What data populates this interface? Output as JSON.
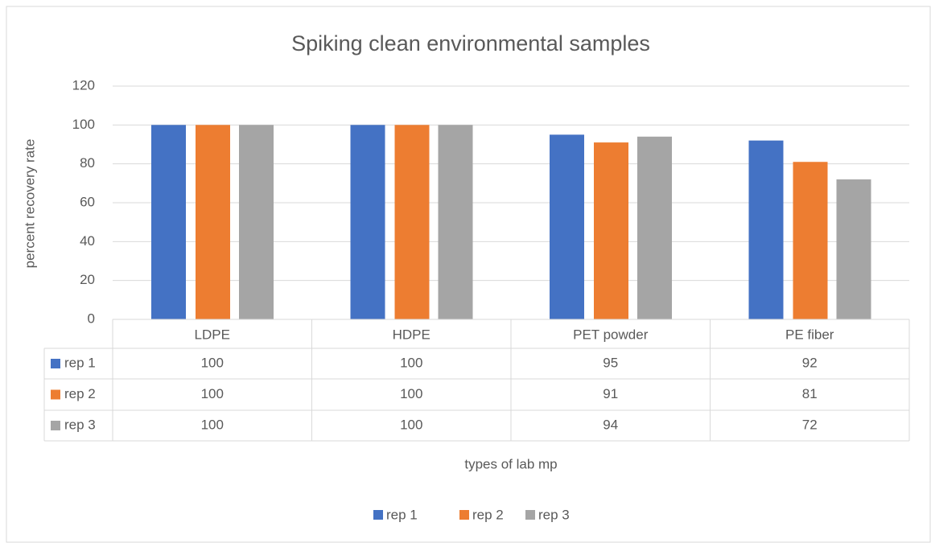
{
  "chart_data": {
    "type": "bar",
    "title": "Spiking clean environmental samples",
    "y_label": "percent recovery rate",
    "x_label": "types of lab mp",
    "categories": [
      "LDPE",
      "HDPE",
      "PET powder",
      "PE fiber"
    ],
    "series": [
      {
        "name": "rep 1",
        "color": "#4472c4",
        "values": [
          100,
          100,
          95,
          92
        ]
      },
      {
        "name": "rep 2",
        "color": "#ed7d31",
        "values": [
          100,
          100,
          91,
          81
        ]
      },
      {
        "name": "rep 3",
        "color": "#a5a5a5",
        "values": [
          100,
          100,
          94,
          72
        ]
      }
    ],
    "ylim": [
      0,
      120
    ],
    "yticks": [
      0,
      20,
      40,
      60,
      80,
      100,
      120
    ],
    "grid": true,
    "legend": "bottom"
  }
}
